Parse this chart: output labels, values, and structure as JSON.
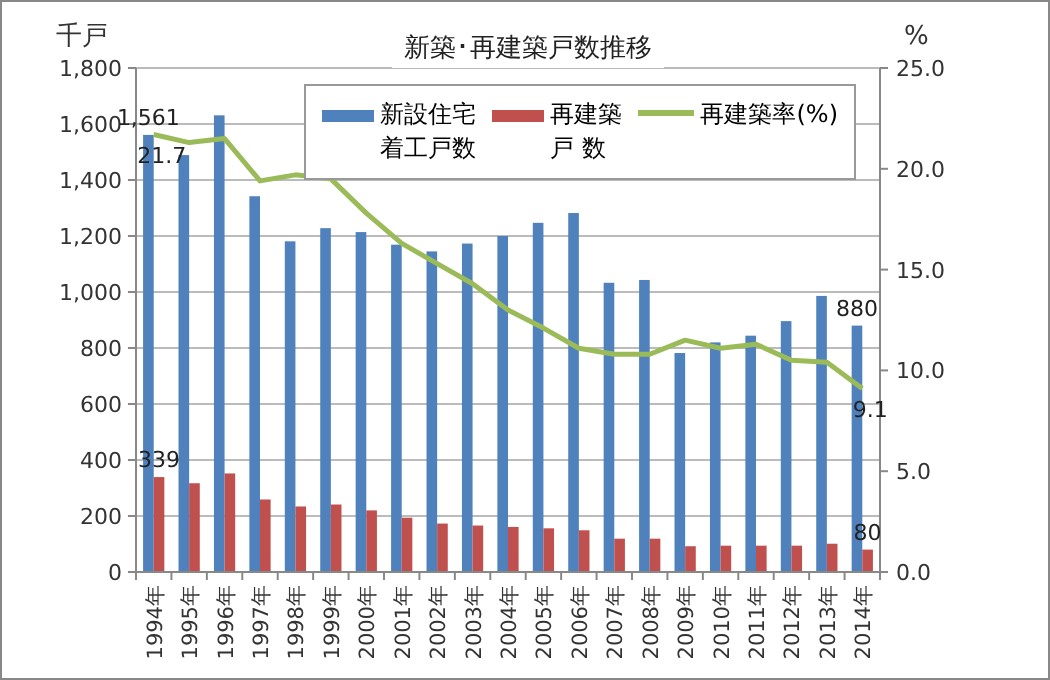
{
  "chart_data": {
    "type": "bar",
    "title": "新築･再建築戸数推移",
    "ylabel": "千戸",
    "y2label": "%",
    "categories": [
      "1994年",
      "1995年",
      "1996年",
      "1997年",
      "1998年",
      "1999年",
      "2000年",
      "2001年",
      "2002年",
      "2003年",
      "2004年",
      "2005年",
      "2006年",
      "2007年",
      "2008年",
      "2009年",
      "2010年",
      "2011年",
      "2012年",
      "2013年",
      "2014年"
    ],
    "series": [
      {
        "name": "新設住宅着工戸数",
        "color": "#4f81bd",
        "values": [
          1561,
          1489,
          1631,
          1342,
          1181,
          1228,
          1214,
          1169,
          1145,
          1173,
          1200,
          1247,
          1282,
          1033,
          1043,
          782,
          820,
          844,
          896,
          986,
          880
        ],
        "value_labels": [
          "1,561",
          null,
          null,
          null,
          null,
          null,
          null,
          null,
          null,
          null,
          null,
          null,
          null,
          null,
          null,
          null,
          null,
          null,
          null,
          null,
          "880"
        ]
      },
      {
        "name": "再建築戸 数",
        "color": "#c0504d",
        "values": [
          339,
          317,
          352,
          259,
          234,
          241,
          220,
          194,
          173,
          166,
          161,
          156,
          149,
          119,
          119,
          92,
          94,
          94,
          94,
          101,
          80
        ],
        "value_labels": [
          "339",
          null,
          null,
          null,
          null,
          null,
          null,
          null,
          null,
          null,
          null,
          null,
          null,
          null,
          null,
          null,
          null,
          null,
          null,
          null,
          "80"
        ]
      },
      {
        "name": "再建築率(%)",
        "type": "line",
        "axis": "y2",
        "color": "#9bbb59",
        "values": [
          21.7,
          21.3,
          21.5,
          19.4,
          19.7,
          19.5,
          17.8,
          16.3,
          15.3,
          14.3,
          13.0,
          12.1,
          11.1,
          10.8,
          10.8,
          11.5,
          11.1,
          11.3,
          10.5,
          10.4,
          9.1
        ],
        "value_labels": [
          "21.7",
          null,
          null,
          null,
          null,
          null,
          null,
          null,
          null,
          null,
          null,
          null,
          null,
          null,
          null,
          null,
          null,
          null,
          null,
          null,
          "9.1"
        ]
      }
    ],
    "ylim": [
      0,
      1800
    ],
    "yticks": [
      {
        "value": 0,
        "label": "0"
      },
      {
        "value": 200,
        "label": "200"
      },
      {
        "value": 400,
        "label": "400"
      },
      {
        "value": 600,
        "label": "600"
      },
      {
        "value": 800,
        "label": "800"
      },
      {
        "value": 1000,
        "label": "1,000"
      },
      {
        "value": 1200,
        "label": "1,200"
      },
      {
        "value": 1400,
        "label": "1,400"
      },
      {
        "value": 1600,
        "label": "1,600"
      },
      {
        "value": 1800,
        "label": "1,800"
      }
    ],
    "y2lim": [
      0,
      25
    ],
    "y2ticks": [
      {
        "value": 0,
        "label": "0.0"
      },
      {
        "value": 5,
        "label": "5.0"
      },
      {
        "value": 10,
        "label": "10.0"
      },
      {
        "value": 15,
        "label": "15.0"
      },
      {
        "value": 20,
        "label": "20.0"
      },
      {
        "value": 25,
        "label": "25.0"
      }
    ],
    "grid": "y",
    "legend": "top right"
  }
}
